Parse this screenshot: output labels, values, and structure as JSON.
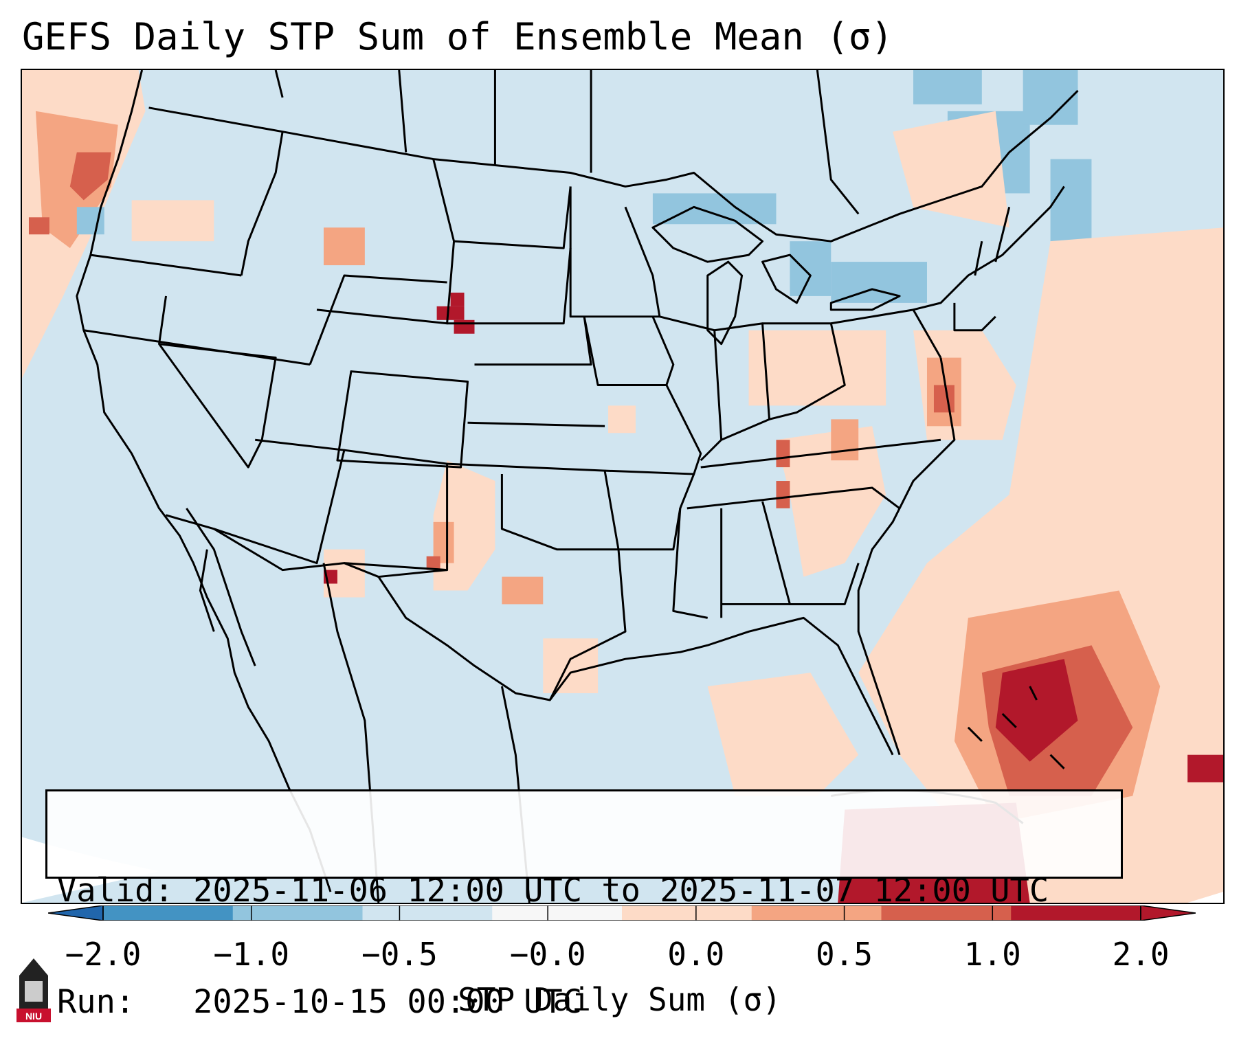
{
  "title": "GEFS Daily STP Sum of Ensemble Mean (σ)",
  "info": {
    "valid_line": "Valid: 2025-11-06 12:00 UTC to 2025-11-07 12:00 UTC",
    "run_line": "Run:   2025-10-15 00:00 UTC"
  },
  "colorbar": {
    "label": "STP Daily Sum (σ)",
    "ticks": [
      "−2.0",
      "−1.0",
      "−0.5",
      "−0.0",
      "0.0",
      "0.5",
      "1.0",
      "2.0"
    ],
    "colors": [
      "#4393c3",
      "#92c5de",
      "#d1e5f0",
      "#f7f7f7",
      "#fddbc7",
      "#f4a582",
      "#d6604d",
      "#b2182b"
    ],
    "extend_low_color": "#2166ac",
    "extend_high_color": "#b2182b"
  },
  "logo": {
    "text": "NIU"
  },
  "map": {
    "background_color": "#d1e5f0",
    "boundary_color": "#000000",
    "anomaly_patches": [
      {
        "region": "Pacific Northwest coast",
        "level": 0.5,
        "color": "#f4a582"
      },
      {
        "region": "Pacific offshore",
        "level": 1.0,
        "color": "#d6604d"
      },
      {
        "region": "Nebraska/South Dakota border",
        "level": 2.0,
        "color": "#b2182b"
      },
      {
        "region": "Southwest Mexico",
        "level": 2.0,
        "color": "#b2182b"
      },
      {
        "region": "Great Lakes",
        "level": -0.5,
        "color": "#92c5de"
      },
      {
        "region": "Northeast Canada",
        "level": -0.5,
        "color": "#92c5de"
      },
      {
        "region": "Mid-Atlantic coast",
        "level": 0.5,
        "color": "#f4a582"
      },
      {
        "region": "Southern Appalachians",
        "level": 0.5,
        "color": "#f4a582"
      },
      {
        "region": "Southeast US",
        "level": 0.0,
        "color": "#fddbc7"
      },
      {
        "region": "Bahamas",
        "level": 1.0,
        "color": "#d6604d"
      },
      {
        "region": "Caribbean / Cuba",
        "level": 2.0,
        "color": "#b2182b"
      }
    ]
  }
}
